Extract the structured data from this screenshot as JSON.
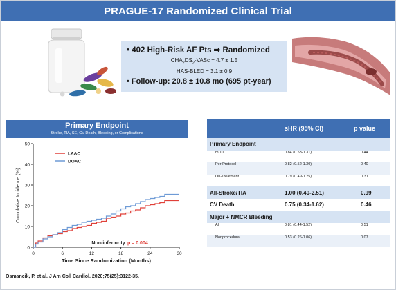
{
  "banner": {
    "title": "PRAGUE-17 Randomized Clinical Trial"
  },
  "info": {
    "line1_prefix": "• 402 High-Risk AF Pts",
    "line1_suffix": "Randomized",
    "cha_a": "CHA",
    "cha_sub1": "2",
    "cha_b": "DS",
    "cha_sub2": "2",
    "cha_c": "-VASc = 4.7 ± 1.5",
    "hasbled": "HAS-BLED = 3.1 ± 0.9",
    "followup": "• Follow-up: 20.8 ± 10.8 mo (695 pt-year)"
  },
  "chart_data": {
    "type": "line",
    "title": "Primary Endpoint",
    "subtitle": "Stroke, TIA, SE, CV Death, Bleeding, or Complications",
    "xlabel": "Time Since Randomization (Months)",
    "ylabel": "Cumulative Incidence (%)",
    "xlim": [
      0,
      30
    ],
    "ylim": [
      0,
      50
    ],
    "xticks": [
      "0",
      "6",
      "12",
      "18",
      "24",
      "30"
    ],
    "yticks": [
      "0",
      "10",
      "20",
      "30",
      "40",
      "50"
    ],
    "legend_position": "top-left",
    "annotation_label": "Non-inferiority: ",
    "annotation_value": "p = 0.004",
    "series": [
      {
        "name": "LAAC",
        "color": "#e0413a",
        "x": [
          0,
          0.5,
          1,
          2,
          3,
          4,
          5,
          6,
          7,
          8,
          9,
          10,
          11,
          12,
          13,
          14,
          15,
          16,
          17,
          18,
          19,
          20,
          21,
          22,
          23,
          24,
          25,
          26,
          27,
          28,
          29,
          30
        ],
        "y": [
          0,
          2,
          3,
          4.5,
          5.5,
          6,
          6.5,
          7.5,
          8,
          9,
          9.5,
          10,
          10.5,
          11.5,
          12,
          12.5,
          14,
          14.5,
          15,
          16,
          16.5,
          17.5,
          18,
          19,
          20,
          20.5,
          21,
          21.5,
          22.5,
          22.5,
          22.5,
          22.5
        ]
      },
      {
        "name": "DOAC",
        "color": "#6e9bd6",
        "x": [
          0,
          0.5,
          1,
          2,
          3,
          4,
          5,
          6,
          7,
          8,
          9,
          10,
          11,
          12,
          13,
          14,
          15,
          16,
          17,
          18,
          19,
          20,
          21,
          22,
          23,
          24,
          25,
          26,
          27,
          28,
          29,
          30
        ],
        "y": [
          0,
          1.5,
          2.5,
          4,
          5,
          6,
          7,
          8.5,
          9.5,
          10.5,
          11,
          12,
          12.5,
          13,
          13.5,
          14,
          15,
          16,
          17.5,
          18.5,
          19.5,
          20,
          21,
          22,
          23,
          23.5,
          24,
          24.5,
          25.5,
          25.5,
          25.5,
          25.5
        ]
      }
    ]
  },
  "table": {
    "headers": [
      "",
      "sHR (95% CI)",
      "p value"
    ],
    "rows": [
      {
        "label": "Primary Endpoint",
        "hr": "",
        "p": "",
        "kind": "sect"
      },
      {
        "label": "mITT",
        "hr": "0.84 (0.53-1.31)",
        "p": "0.44",
        "kind": "sub"
      },
      {
        "label": "Per Protocol",
        "hr": "0.82 (0.52-1.30)",
        "p": "0.40",
        "kind": "sub-stripe"
      },
      {
        "label": "On-Treatment",
        "hr": "0.79 (0.49-1.25)",
        "p": "0.31",
        "kind": "sub"
      },
      {
        "label": "All-Stroke/TIA",
        "hr": "1.00 (0.40-2.51)",
        "p": "0.99",
        "kind": "sect"
      },
      {
        "label": "CV Death",
        "hr": "0.75 (0.34-1.62)",
        "p": "0.46",
        "kind": "plain-bold"
      },
      {
        "label": "Major + NMCR Bleeding",
        "hr": "",
        "p": "",
        "kind": "sect"
      },
      {
        "label": "All",
        "hr": "0.81 (0.44-1.52)",
        "p": "0.51",
        "kind": "sub"
      },
      {
        "label": "Nonprocedural",
        "hr": "0.53 (0.26-1.06)",
        "p": "0.07",
        "kind": "sub-stripe"
      }
    ]
  },
  "citation": "Osmancik, P. et al. J Am Coll Cardiol. 2020;75(25):3122-35.",
  "colors": {
    "brand_blue": "#3f6fb3",
    "light_blue": "#d6e3f3",
    "stripe": "#eaf0f8",
    "red": "#e0413a"
  }
}
